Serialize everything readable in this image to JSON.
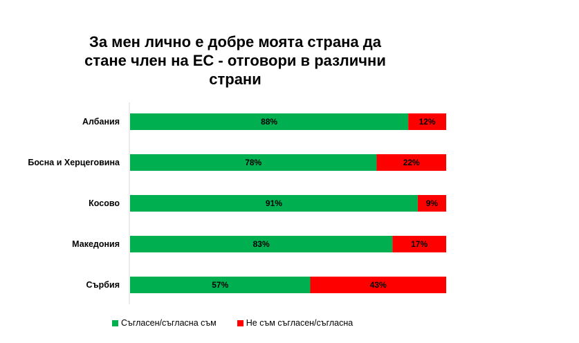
{
  "chart_data": {
    "type": "bar",
    "orientation": "horizontal-stacked-100",
    "title": "За мен лично е добре моята страна да стане член на ЕС - отговори в различни страни",
    "title_lines": [
      "За мен лично е добре моята страна да",
      "стане член на ЕС - отговори в различни",
      "страни"
    ],
    "categories": [
      "Албания",
      "Босна и Херцеговина",
      "Косово",
      "Македония",
      "Сърбия"
    ],
    "series": [
      {
        "name": "Съгласен/съгласна съм",
        "color": "#00B050",
        "values": [
          88,
          78,
          91,
          83,
          57
        ]
      },
      {
        "name": "Не съм съгласен/съгласна",
        "color": "#FF0000",
        "values": [
          12,
          22,
          9,
          17,
          43
        ]
      }
    ],
    "xlim": [
      0,
      100
    ],
    "unit": "%",
    "legend_position": "bottom"
  }
}
